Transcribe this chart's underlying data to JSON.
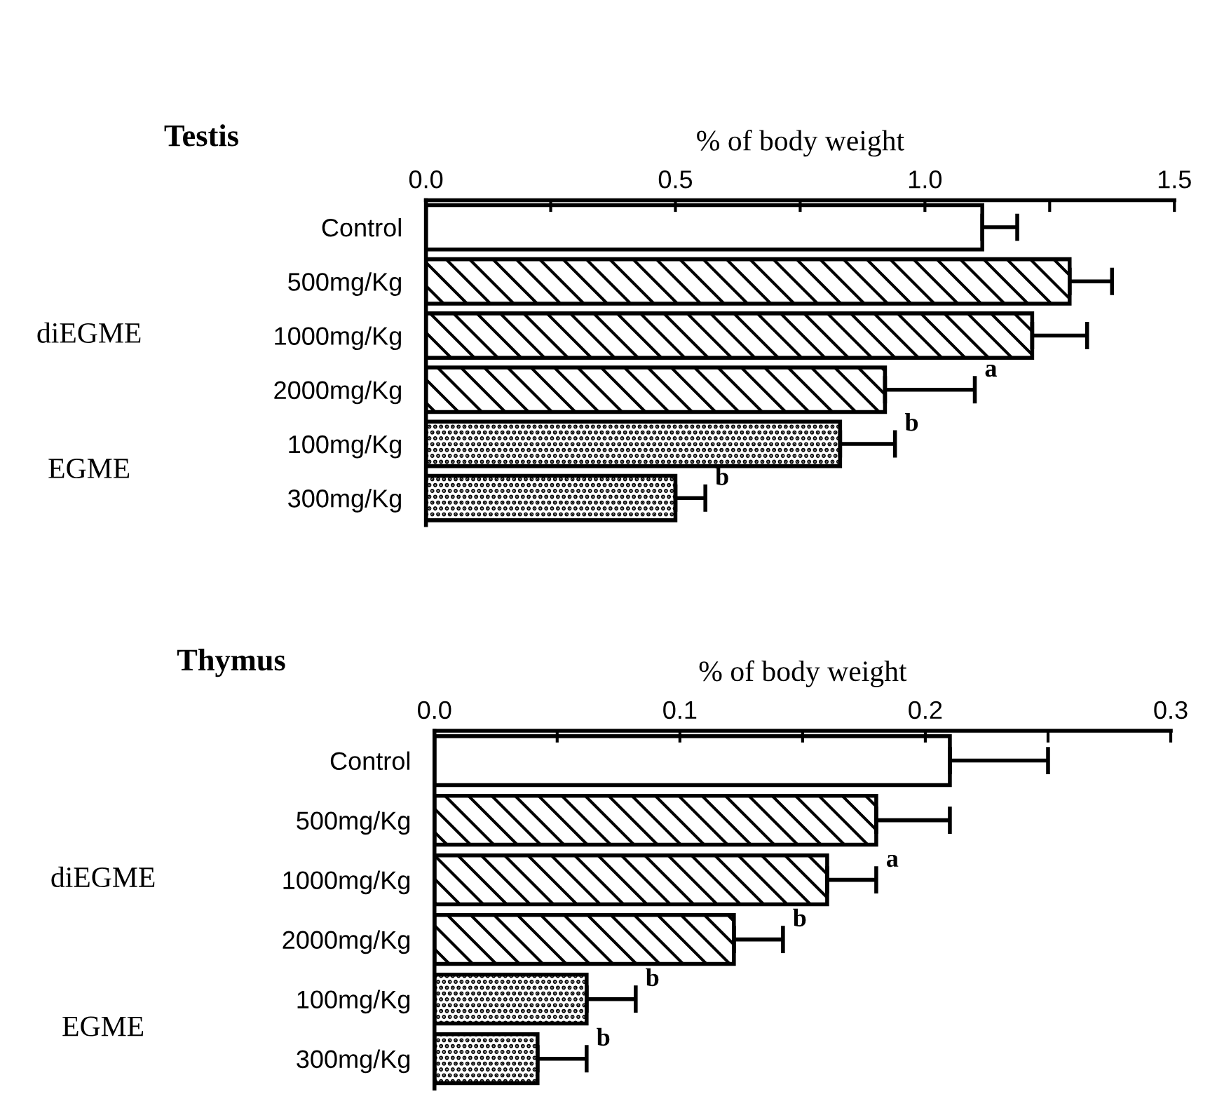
{
  "chart_data": [
    {
      "type": "bar",
      "orientation": "horizontal",
      "title": "Testis",
      "xlabel": "% of body weight",
      "categories": [
        "Control",
        "500mg/Kg",
        "1000mg/Kg",
        "2000mg/Kg",
        "100mg/Kg",
        "300mg/Kg"
      ],
      "values": [
        1.115,
        1.29,
        1.215,
        0.92,
        0.83,
        0.5
      ],
      "errors": [
        0.07,
        0.085,
        0.11,
        0.18,
        0.11,
        0.06
      ],
      "colors": [
        "#ffffff",
        "#000000",
        "#000000",
        "#000000",
        "#000000",
        "#000000"
      ],
      "xlim": [
        0,
        1.5
      ],
      "xticks": [
        {
          "value": 0,
          "label": "0.0"
        },
        {
          "value": 0.25,
          "label": null
        },
        {
          "value": 0.5,
          "label": "0.5"
        },
        {
          "value": 0.75,
          "label": null
        },
        {
          "value": 1,
          "label": "1.0"
        },
        {
          "value": 1.25,
          "label": null
        },
        {
          "value": 1.5,
          "label": "1.5"
        }
      ],
      "grid": false,
      "annotations": [
        "diEGME",
        "EGME",
        {
          "text": "a",
          "x": 1.1,
          "y": "2000mg/Kg"
        },
        {
          "text": "b",
          "x": 0.94,
          "y": "100mg/Kg"
        },
        {
          "text": "b",
          "x": 0.56,
          "y": "300mg/Kg"
        }
      ]
    },
    {
      "type": "bar",
      "orientation": "horizontal",
      "title": "Thymus",
      "xlabel": "% of body weight",
      "categories": [
        "Control",
        "500mg/Kg",
        "1000mg/Kg",
        "2000mg/Kg",
        "100mg/Kg",
        "300mg/Kg"
      ],
      "values": [
        0.21,
        0.18,
        0.16,
        0.122,
        0.062,
        0.042
      ],
      "errors": [
        0.04,
        0.03,
        0.02,
        0.02,
        0.02,
        0.02
      ],
      "colors": [
        "#ffffff",
        "#000000",
        "#000000",
        "#000000",
        "#000000",
        "#000000"
      ],
      "xlim": [
        0,
        0.3
      ],
      "xticks": [
        {
          "value": 0,
          "label": "0.0"
        },
        {
          "value": 0.05,
          "label": null
        },
        {
          "value": 0.1,
          "label": "0.1"
        },
        {
          "value": 0.15,
          "label": null
        },
        {
          "value": 0.2,
          "label": "0.2"
        },
        {
          "value": 0.25,
          "label": null
        },
        {
          "value": 0.3,
          "label": "0.3"
        }
      ],
      "grid": false,
      "annotations": [
        "diEGME",
        "EGME",
        {
          "text": "a",
          "x": 0.18,
          "y": "1000mg/Kg"
        },
        {
          "text": "b",
          "x": 0.142,
          "y": "2000mg/Kg"
        },
        {
          "text": "b",
          "x": 0.082,
          "y": "100mg/Kg"
        },
        {
          "text": "b",
          "x": 0.062,
          "y": "300mg/Kg"
        }
      ]
    }
  ]
}
